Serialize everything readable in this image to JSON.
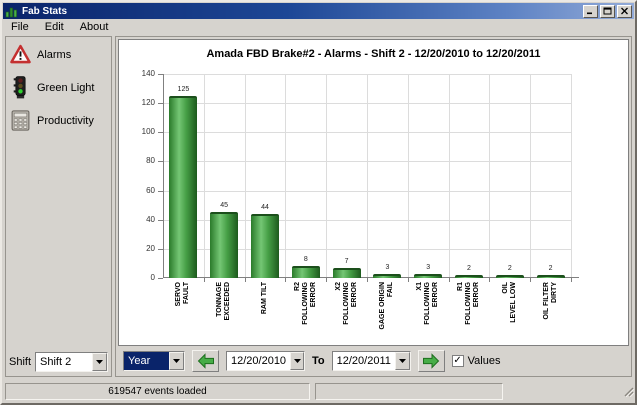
{
  "window": {
    "title": "Fab Stats"
  },
  "menu": {
    "items": [
      "File",
      "Edit",
      "About"
    ]
  },
  "sidebar": {
    "items": [
      {
        "label": "Alarms",
        "icon": "warning-triangle-icon"
      },
      {
        "label": "Green Light",
        "icon": "traffic-light-icon"
      },
      {
        "label": "Productivity",
        "icon": "calculator-icon"
      }
    ],
    "shift_label": "Shift",
    "shift_value": "Shift 2"
  },
  "controls": {
    "period_value": "Year",
    "period_highlighted": true,
    "date_from": "12/20/2010",
    "to_label": "To",
    "date_to": "12/20/2011",
    "values_label": "Values",
    "values_checked": true
  },
  "statusbar": {
    "text": "619547 events loaded"
  },
  "colors": {
    "bar_green": "#459e45",
    "titlebar_blue": "#0a246a",
    "selection_blue": "#0a246a",
    "chrome_grey": "#d6d3ce"
  },
  "chart_data": {
    "type": "bar",
    "title": "Amada FBD Brake#2 - Alarms - Shift 2 - 12/20/2010 to 12/20/2011",
    "categories": [
      "SERVO FAULT",
      "TONNAGE EXCEEDED",
      "RAM TILT",
      "R2 FOLLOWING ERROR",
      "X2 FOLLOWING ERROR",
      "GAGE ORIGIN FAIL",
      "X1 FOLLOWING ERROR",
      "R1 FOLLOWING ERROR",
      "OIL LEVEL LOW",
      "OIL FILTER DIRTY"
    ],
    "tick_label_lines": [
      [
        "SERVO",
        "FAULT"
      ],
      [
        "TONNAGE",
        "EXCEEDED"
      ],
      [
        "RAM TILT"
      ],
      [
        "R2",
        "FOLLOWING",
        "ERROR"
      ],
      [
        "X2",
        "FOLLOWING",
        "ERROR"
      ],
      [
        "GAGE ORIGIN",
        "FAIL"
      ],
      [
        "X1",
        "FOLLOWING",
        "ERROR"
      ],
      [
        "R1",
        "FOLLOWING",
        "ERROR"
      ],
      [
        "OIL",
        "LEVEL LOW"
      ],
      [
        "OIL FILTER",
        "DIRTY"
      ]
    ],
    "values": [
      125,
      45,
      44,
      8,
      7,
      3,
      3,
      2,
      2,
      2
    ],
    "xlabel": "",
    "ylabel": "",
    "ylim": [
      0,
      140
    ],
    "ytick_step": 20,
    "grid": true,
    "value_labels": true,
    "legend": false
  }
}
